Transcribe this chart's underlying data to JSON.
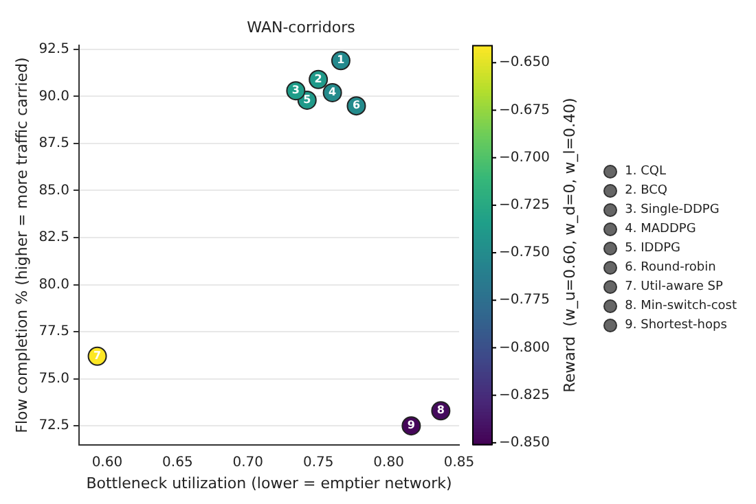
{
  "chart_data": {
    "type": "scatter",
    "title": "WAN-corridors",
    "xlabel": "Bottleneck utilization (lower = emptier network)",
    "ylabel": "Flow completion % (higher = more traffic carried)",
    "clabel": "Reward  (w_u=0.60, w_d=0, w_l=0.40)",
    "xlim": [
      0.58,
      0.85
    ],
    "xticks": [
      {
        "value": 0.6,
        "label": "0.60"
      },
      {
        "value": 0.65,
        "label": "0.65"
      },
      {
        "value": 0.7,
        "label": "0.70"
      },
      {
        "value": 0.75,
        "label": "0.75"
      },
      {
        "value": 0.8,
        "label": "0.80"
      },
      {
        "value": 0.85,
        "label": "0.85"
      }
    ],
    "ylim": [
      71.5,
      92.7
    ],
    "yticks": [
      72.5,
      {
        "value": 75,
        "label": "75.0"
      },
      77.5,
      {
        "value": 80,
        "label": "80.0"
      },
      82.5,
      {
        "value": 85,
        "label": "85.0"
      },
      87.5,
      {
        "value": 90,
        "label": "90.0"
      },
      92.5
    ],
    "clim": [
      -0.851,
      -0.641
    ],
    "cticks": [
      {
        "value": -0.65,
        "label": "−0.650"
      },
      {
        "value": -0.675,
        "label": "−0.675"
      },
      {
        "value": -0.7,
        "label": "−0.700"
      },
      {
        "value": -0.725,
        "label": "−0.725"
      },
      {
        "value": -0.75,
        "label": "−0.750"
      },
      {
        "value": -0.775,
        "label": "−0.775"
      },
      {
        "value": -0.8,
        "label": "−0.800"
      },
      {
        "value": -0.825,
        "label": "−0.825"
      },
      {
        "value": -0.85,
        "label": "−0.850"
      }
    ],
    "grid": "y",
    "legend": "right",
    "marker": "circle",
    "series": [
      {
        "name": "1. CQL",
        "x": [
          0.766
        ],
        "values": [
          91.9
        ],
        "cvalues": [
          -0.752
        ]
      },
      {
        "name": "2. BCQ",
        "x": [
          0.75
        ],
        "values": [
          90.9
        ],
        "cvalues": [
          -0.738
        ]
      },
      {
        "name": "3. Single-DDPG",
        "x": [
          0.734
        ],
        "values": [
          90.3
        ],
        "cvalues": [
          -0.735
        ]
      },
      {
        "name": "4. MADDPG",
        "x": [
          0.76
        ],
        "values": [
          90.2
        ],
        "cvalues": [
          -0.75
        ]
      },
      {
        "name": "5. IDDPG",
        "x": [
          0.742
        ],
        "values": [
          89.8
        ],
        "cvalues": [
          -0.738
        ]
      },
      {
        "name": "6. Round-robin",
        "x": [
          0.777
        ],
        "values": [
          89.5
        ],
        "cvalues": [
          -0.75
        ]
      },
      {
        "name": "7. Util-aware SP",
        "x": [
          0.593
        ],
        "values": [
          76.2
        ],
        "cvalues": [
          -0.641
        ]
      },
      {
        "name": "8. Min-switch-cost",
        "x": [
          0.837
        ],
        "values": [
          73.3
        ],
        "cvalues": [
          -0.845
        ]
      },
      {
        "name": "9. Shortest-hops",
        "x": [
          0.816
        ],
        "values": [
          72.5
        ],
        "cvalues": [
          -0.848
        ]
      }
    ],
    "annotations": [
      {
        "text": "1",
        "x": 0.766,
        "y": 91.9
      },
      {
        "text": "2",
        "x": 0.75,
        "y": 90.9
      },
      {
        "text": "3",
        "x": 0.734,
        "y": 90.3
      },
      {
        "text": "4",
        "x": 0.76,
        "y": 90.2
      },
      {
        "text": "5",
        "x": 0.742,
        "y": 89.8
      },
      {
        "text": "6",
        "x": 0.777,
        "y": 89.5
      },
      {
        "text": "7",
        "x": 0.593,
        "y": 76.2
      },
      {
        "text": "8",
        "x": 0.837,
        "y": 73.3
      },
      {
        "text": "9",
        "x": 0.816,
        "y": 72.5
      }
    ]
  }
}
